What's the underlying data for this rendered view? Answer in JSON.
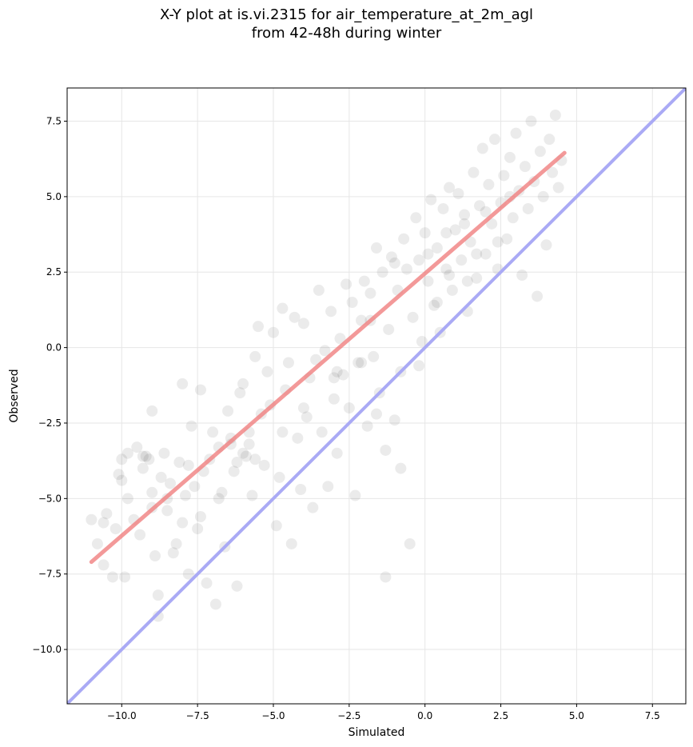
{
  "chart_data": {
    "type": "scatter",
    "title_lines": [
      "X-Y plot at is.vi.2315 for air_temperature_at_2m_agl",
      "from 42-48h during winter"
    ],
    "xlabel": "Simulated",
    "ylabel": "Observed",
    "xlim": [
      -11.8,
      8.6
    ],
    "ylim": [
      -11.8,
      8.6
    ],
    "x_ticks": [
      -10.0,
      -7.5,
      -5.0,
      -2.5,
      0.0,
      2.5,
      5.0,
      7.5
    ],
    "y_ticks": [
      -10.0,
      -7.5,
      -5.0,
      -2.5,
      0.0,
      2.5,
      5.0,
      7.5
    ],
    "x_tick_labels": [
      "−10.0",
      "−7.5",
      "−5.0",
      "−2.5",
      "0.0",
      "2.5",
      "5.0",
      "7.5"
    ],
    "y_tick_labels": [
      "−10.0",
      "−7.5",
      "−5.0",
      "−2.5",
      "0.0",
      "2.5",
      "5.0",
      "7.5"
    ],
    "grid": true,
    "point_color": "#000000",
    "point_alpha": 0.08,
    "points": [
      [
        -11.0,
        -5.7
      ],
      [
        -10.8,
        -6.5
      ],
      [
        -10.6,
        -7.2
      ],
      [
        -10.6,
        -5.8
      ],
      [
        -10.5,
        -5.5
      ],
      [
        -10.3,
        -7.6
      ],
      [
        -10.2,
        -6.0
      ],
      [
        -10.1,
        -4.2
      ],
      [
        -10.0,
        -4.4
      ],
      [
        -10.0,
        -3.7
      ],
      [
        -9.9,
        -7.6
      ],
      [
        -9.8,
        -5.0
      ],
      [
        -9.8,
        -3.5
      ],
      [
        -9.6,
        -5.7
      ],
      [
        -9.5,
        -3.3
      ],
      [
        -9.4,
        -6.2
      ],
      [
        -9.3,
        -4.0
      ],
      [
        -9.3,
        -3.6
      ],
      [
        -9.2,
        -3.6
      ],
      [
        -9.1,
        -3.7
      ],
      [
        -9.0,
        -5.3
      ],
      [
        -9.0,
        -2.1
      ],
      [
        -9.0,
        -4.8
      ],
      [
        -8.9,
        -6.9
      ],
      [
        -8.8,
        -8.2
      ],
      [
        -8.8,
        -8.9
      ],
      [
        -8.7,
        -4.3
      ],
      [
        -8.6,
        -3.5
      ],
      [
        -8.5,
        -5.4
      ],
      [
        -8.4,
        -4.5
      ],
      [
        -8.3,
        -6.8
      ],
      [
        -8.2,
        -6.5
      ],
      [
        -8.1,
        -3.8
      ],
      [
        -8.0,
        -5.8
      ],
      [
        -8.0,
        -1.2
      ],
      [
        -7.9,
        -4.9
      ],
      [
        -7.8,
        -7.5
      ],
      [
        -7.8,
        -3.9
      ],
      [
        -7.7,
        -2.6
      ],
      [
        -7.6,
        -4.6
      ],
      [
        -7.5,
        -6.0
      ],
      [
        -7.4,
        -5.6
      ],
      [
        -7.4,
        -1.4
      ],
      [
        -7.3,
        -4.1
      ],
      [
        -7.2,
        -7.8
      ],
      [
        -7.1,
        -3.7
      ],
      [
        -7.0,
        -2.8
      ],
      [
        -6.9,
        -8.5
      ],
      [
        -6.8,
        -5.0
      ],
      [
        -6.8,
        -3.3
      ],
      [
        -6.7,
        -4.8
      ],
      [
        -6.6,
        -6.6
      ],
      [
        -6.5,
        -2.1
      ],
      [
        -6.4,
        -3.2
      ],
      [
        -6.3,
        -4.1
      ],
      [
        -6.2,
        -7.9
      ],
      [
        -6.1,
        -1.5
      ],
      [
        -6.0,
        -3.5
      ],
      [
        -6.0,
        -1.2
      ],
      [
        -5.9,
        -3.6
      ],
      [
        -5.8,
        -2.8
      ],
      [
        -5.7,
        -4.9
      ],
      [
        -5.6,
        -0.3
      ],
      [
        -5.5,
        0.7
      ],
      [
        -5.4,
        -2.2
      ],
      [
        -5.3,
        -3.9
      ],
      [
        -5.2,
        -0.8
      ],
      [
        -5.1,
        -1.9
      ],
      [
        -5.0,
        0.5
      ],
      [
        -4.9,
        -5.9
      ],
      [
        -4.8,
        -4.3
      ],
      [
        -4.7,
        -2.8
      ],
      [
        -4.7,
        1.3
      ],
      [
        -4.6,
        -1.4
      ],
      [
        -4.5,
        -0.5
      ],
      [
        -4.4,
        -6.5
      ],
      [
        -4.3,
        1.0
      ],
      [
        -4.2,
        -3.0
      ],
      [
        -4.1,
        -4.7
      ],
      [
        -4.0,
        0.8
      ],
      [
        -3.9,
        -2.3
      ],
      [
        -3.8,
        -1.0
      ],
      [
        -3.7,
        -5.3
      ],
      [
        -3.6,
        -0.4
      ],
      [
        -3.5,
        1.9
      ],
      [
        -3.4,
        -2.8
      ],
      [
        -3.3,
        -0.1
      ],
      [
        -3.2,
        -4.6
      ],
      [
        -3.1,
        1.2
      ],
      [
        -3.0,
        -1.7
      ],
      [
        -2.9,
        -3.5
      ],
      [
        -2.8,
        0.3
      ],
      [
        -2.7,
        -0.9
      ],
      [
        -2.6,
        2.1
      ],
      [
        -2.5,
        -2.0
      ],
      [
        -2.4,
        1.5
      ],
      [
        -2.3,
        -4.9
      ],
      [
        -2.2,
        -0.5
      ],
      [
        -2.1,
        0.9
      ],
      [
        -2.0,
        2.2
      ],
      [
        -1.9,
        -2.6
      ],
      [
        -1.8,
        1.8
      ],
      [
        -1.7,
        -0.3
      ],
      [
        -1.6,
        3.3
      ],
      [
        -1.5,
        -1.5
      ],
      [
        -1.4,
        2.5
      ],
      [
        -1.3,
        -3.4
      ],
      [
        -1.2,
        0.6
      ],
      [
        -1.1,
        3.0
      ],
      [
        -1.0,
        -2.4
      ],
      [
        -0.9,
        1.9
      ],
      [
        -0.8,
        -0.8
      ],
      [
        -0.7,
        3.6
      ],
      [
        -0.6,
        2.6
      ],
      [
        -0.5,
        -6.5
      ],
      [
        -0.4,
        1.0
      ],
      [
        -0.3,
        4.3
      ],
      [
        -0.2,
        2.9
      ],
      [
        -0.1,
        0.2
      ],
      [
        0.0,
        3.8
      ],
      [
        0.1,
        2.2
      ],
      [
        0.2,
        4.9
      ],
      [
        0.3,
        1.4
      ],
      [
        0.4,
        3.3
      ],
      [
        0.5,
        0.5
      ],
      [
        0.6,
        4.6
      ],
      [
        0.7,
        2.6
      ],
      [
        0.8,
        5.3
      ],
      [
        0.9,
        1.9
      ],
      [
        1.0,
        3.9
      ],
      [
        1.1,
        5.1
      ],
      [
        1.2,
        2.9
      ],
      [
        1.3,
        4.4
      ],
      [
        1.4,
        1.2
      ],
      [
        1.5,
        3.5
      ],
      [
        1.6,
        5.8
      ],
      [
        1.7,
        2.3
      ],
      [
        1.8,
        4.7
      ],
      [
        1.9,
        6.6
      ],
      [
        2.0,
        3.1
      ],
      [
        2.1,
        5.4
      ],
      [
        2.2,
        4.1
      ],
      [
        2.3,
        6.9
      ],
      [
        2.4,
        2.6
      ],
      [
        2.5,
        4.8
      ],
      [
        2.6,
        5.7
      ],
      [
        2.7,
        3.6
      ],
      [
        2.8,
        6.3
      ],
      [
        2.9,
        4.3
      ],
      [
        3.0,
        7.1
      ],
      [
        3.1,
        5.2
      ],
      [
        3.2,
        2.4
      ],
      [
        3.3,
        6.0
      ],
      [
        3.4,
        4.6
      ],
      [
        3.5,
        7.5
      ],
      [
        3.6,
        5.5
      ],
      [
        3.7,
        1.7
      ],
      [
        3.8,
        6.5
      ],
      [
        3.9,
        5.0
      ],
      [
        4.0,
        3.4
      ],
      [
        4.1,
        6.9
      ],
      [
        4.2,
        5.8
      ],
      [
        4.3,
        7.7
      ],
      [
        4.4,
        5.3
      ],
      [
        4.5,
        6.2
      ],
      [
        -1.6,
        -2.2
      ],
      [
        -0.8,
        -4.0
      ],
      [
        -1.3,
        -7.6
      ],
      [
        0.4,
        1.5
      ],
      [
        1.4,
        2.2
      ],
      [
        -2.1,
        -0.5
      ],
      [
        -0.2,
        -0.6
      ],
      [
        0.8,
        2.4
      ],
      [
        1.7,
        3.1
      ],
      [
        2.4,
        3.5
      ],
      [
        -3.0,
        -1.0
      ],
      [
        -1.8,
        0.9
      ],
      [
        -1.0,
        2.8
      ],
      [
        0.1,
        3.1
      ],
      [
        0.7,
        3.8
      ],
      [
        1.3,
        4.1
      ],
      [
        2.0,
        4.5
      ],
      [
        2.8,
        5.0
      ],
      [
        -4.0,
        -2.0
      ],
      [
        -2.9,
        -0.8
      ],
      [
        -6.2,
        -3.8
      ],
      [
        -5.8,
        -3.2
      ],
      [
        -6.4,
        -3.0
      ],
      [
        -5.6,
        -3.7
      ],
      [
        -8.5,
        -5.0
      ]
    ],
    "fit_line": {
      "x": [
        -11.0,
        4.6
      ],
      "y": [
        -7.1,
        6.45
      ],
      "color": "#f08080"
    },
    "identity_line": {
      "x": [
        -11.8,
        8.6
      ],
      "y": [
        -11.8,
        8.6
      ],
      "color": "#aaaaf5"
    }
  }
}
